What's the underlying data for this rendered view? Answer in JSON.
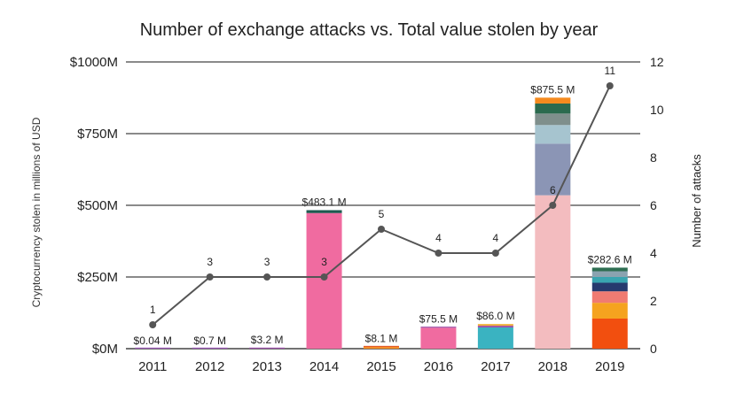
{
  "chart_data": {
    "type": "bar+line",
    "title": "Number of exchange attacks vs. Total value stolen by year",
    "ylabel": "Cryptocurrency stolen in millions of USD",
    "y2label": "Number of attacks",
    "ylim": [
      0,
      1000
    ],
    "y2lim": [
      0,
      12
    ],
    "yticks": [
      "$0M",
      "$250M",
      "$500M",
      "$750M",
      "$1000M"
    ],
    "yticks_values": [
      0,
      250,
      500,
      750,
      1000
    ],
    "y2ticks": [
      "0",
      "2",
      "4",
      "6",
      "8",
      "10",
      "12"
    ],
    "y2ticks_values": [
      0,
      2,
      4,
      6,
      8,
      10,
      12
    ],
    "categories": [
      "2011",
      "2012",
      "2013",
      "2014",
      "2015",
      "2016",
      "2017",
      "2018",
      "2019"
    ],
    "totals": [
      0.04,
      0.7,
      3.2,
      483.1,
      8.1,
      75.5,
      86.0,
      875.5,
      282.6
    ],
    "total_labels": [
      "$0.04 M",
      "$0.7 M",
      "$3.2 M",
      "$483.1 M",
      "$8.1 M",
      "$75.5 M",
      "$86.0 M",
      "$875.5 M",
      "$282.6 M"
    ],
    "stacks": [
      [
        {
          "value": 0.04,
          "color": "#9b59b6"
        }
      ],
      [
        {
          "value": 0.7,
          "color": "#9b59b6"
        }
      ],
      [
        {
          "value": 3.2,
          "color": "#9b4fa8"
        }
      ],
      [
        {
          "value": 473,
          "color": "#f06ba0"
        },
        {
          "value": 10.1,
          "color": "#1f5a50"
        }
      ],
      [
        {
          "value": 6,
          "color": "#f58a1f"
        },
        {
          "value": 2.1,
          "color": "#e25a2a"
        }
      ],
      [
        {
          "value": 73,
          "color": "#f06ba0"
        },
        {
          "value": 2.5,
          "color": "#9b4fa8"
        }
      ],
      [
        {
          "value": 74,
          "color": "#3ab3c1"
        },
        {
          "value": 6,
          "color": "#9b4fa8"
        },
        {
          "value": 6,
          "color": "#f0b13a"
        }
      ],
      [
        {
          "value": 535,
          "color": "#f3bcbf"
        },
        {
          "value": 180,
          "color": "#8b95b5"
        },
        {
          "value": 65,
          "color": "#a6c4cf"
        },
        {
          "value": 40,
          "color": "#7f8f8c"
        },
        {
          "value": 35,
          "color": "#2b6a4e"
        },
        {
          "value": 20.5,
          "color": "#f58a1f"
        }
      ],
      [
        {
          "value": 105,
          "color": "#f24f0f"
        },
        {
          "value": 55,
          "color": "#f5a31f"
        },
        {
          "value": 40,
          "color": "#f07b72"
        },
        {
          "value": 30,
          "color": "#263a6e"
        },
        {
          "value": 20,
          "color": "#3aa5b0"
        },
        {
          "value": 20,
          "color": "#8aa3b0"
        },
        {
          "value": 12.6,
          "color": "#2e6e52"
        }
      ]
    ],
    "attacks": [
      1,
      3,
      3,
      3,
      5,
      4,
      4,
      6,
      11
    ],
    "attack_labels": [
      "1",
      "3",
      "3",
      "3",
      "5",
      "4",
      "4",
      "6",
      "11"
    ],
    "line_color": "#555555",
    "grid_color": "#444444"
  }
}
